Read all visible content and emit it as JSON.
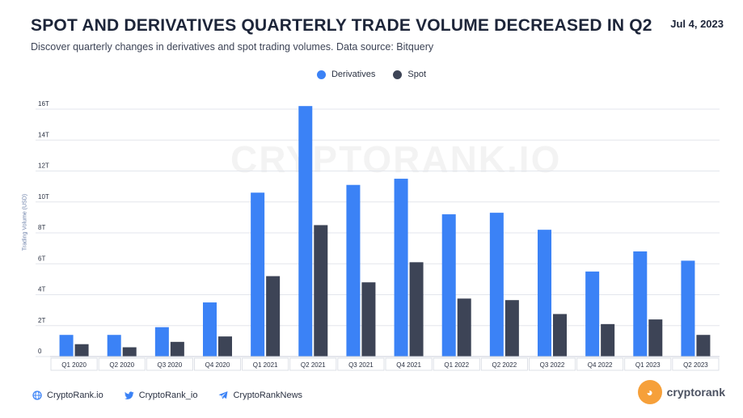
{
  "header": {
    "title": "SPOT AND DERIVATIVES QUARTERLY TRADE VOLUME DECREASED IN Q2",
    "date": "Jul 4, 2023",
    "subtitle": "Discover quarterly changes in derivatives and spot trading volumes. Data source: Bitquery"
  },
  "watermark": "CRYPTORANK.IO",
  "footer": {
    "website": "CryptoRank.io",
    "twitter": "CryptoRank_io",
    "telegram": "CryptoRankNews"
  },
  "brand": {
    "name": "cryptorank"
  },
  "colors": {
    "derivatives": "#3b82f6",
    "spot": "#3d4456",
    "grid": "#e3e6ec"
  },
  "chart_data": {
    "type": "bar",
    "ylabel": "Trading Volume (USD)",
    "ylim": [
      0,
      16
    ],
    "yticks": [
      0,
      2,
      4,
      6,
      8,
      10,
      12,
      14,
      16
    ],
    "ytick_labels": [
      "0",
      "2T",
      "4T",
      "6T",
      "8T",
      "10T",
      "12T",
      "14T",
      "16T"
    ],
    "legend": "top-center",
    "grid": true,
    "categories": [
      "Q1 2020",
      "Q2 2020",
      "Q3 2020",
      "Q4 2020",
      "Q1 2021",
      "Q2 2021",
      "Q3 2021",
      "Q4 2021",
      "Q1 2022",
      "Q2 2022",
      "Q3 2022",
      "Q4 2022",
      "Q1 2023",
      "Q2 2023"
    ],
    "series": [
      {
        "name": "Derivatives",
        "values": [
          1.4,
          1.4,
          1.9,
          3.5,
          10.6,
          16.2,
          11.1,
          11.5,
          9.2,
          9.3,
          8.2,
          5.5,
          6.8,
          6.2
        ]
      },
      {
        "name": "Spot",
        "values": [
          0.8,
          0.6,
          0.95,
          1.3,
          5.2,
          8.5,
          4.8,
          6.1,
          3.75,
          3.65,
          2.75,
          2.1,
          2.4,
          1.4
        ]
      }
    ]
  }
}
